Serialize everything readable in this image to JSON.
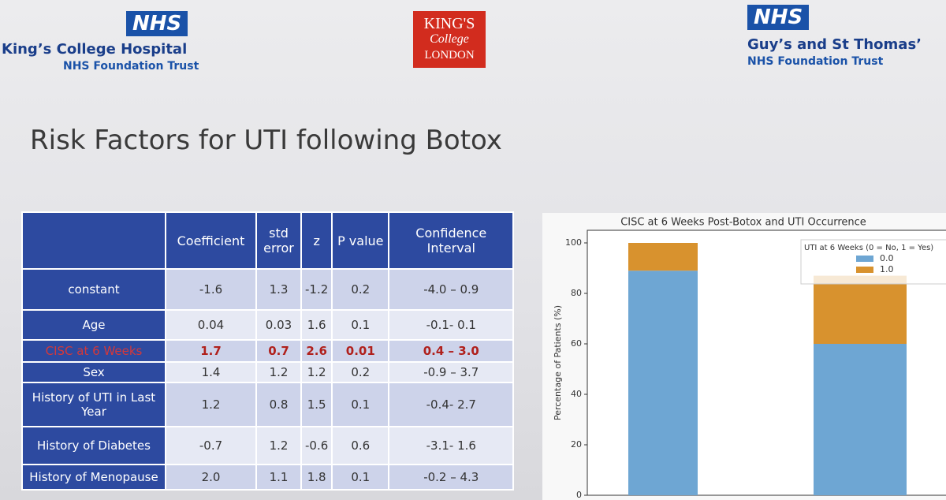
{
  "header": {
    "left_badge": "NHS",
    "left_name": "King’s College Hospital",
    "left_trust": "NHS Foundation Trust",
    "center_logo": [
      "KING'S",
      "College",
      "LONDON"
    ],
    "right_badge": "NHS",
    "right_name": "Guy’s and St Thomas’",
    "right_trust": "NHS Foundation Trust"
  },
  "slide_title": "Risk Factors for UTI following Botox",
  "table": {
    "columns": [
      "",
      "Coefficient",
      "std error",
      "z",
      "P value",
      "Confidence Interval"
    ],
    "highlight_row": 2,
    "rows": [
      [
        "constant",
        "-1.6",
        "1.3",
        "-1.2",
        "0.2",
        "-4.0 – 0.9"
      ],
      [
        "Age",
        "0.04",
        "0.03",
        "1.6",
        "0.1",
        "-0.1- 0.1"
      ],
      [
        "CISC at 6 Weeks",
        "1.7",
        "0.7",
        "2.6",
        "0.01",
        "0.4 – 3.0"
      ],
      [
        "Sex",
        "1.4",
        "1.2",
        "1.2",
        "0.2",
        "-0.9 – 3.7"
      ],
      [
        "History of UTI in Last Year",
        "1.2",
        "0.8",
        "1.5",
        "0.1",
        "-0.4- 2.7"
      ],
      [
        "History of Diabetes",
        "-0.7",
        "1.2",
        "-0.6",
        "0.6",
        "-3.1- 1.6"
      ],
      [
        "History of Menopause",
        "2.0",
        "1.1",
        "1.8",
        "0.1",
        "-0.2 – 4.3"
      ]
    ]
  },
  "chart_data": {
    "type": "stacked_bar",
    "title": "CISC at 6 Weeks Post-Botox and UTI Occurrence",
    "ylabel": "Percentage of Patients (%)",
    "categories": [
      null,
      null
    ],
    "series": [
      {
        "name": "0.0",
        "color": "#6ea6d3",
        "values": [
          89,
          60
        ]
      },
      {
        "name": "1.0",
        "color": "#d8922e",
        "values": [
          11,
          27
        ]
      }
    ],
    "legend_title": "UTI at 6 Weeks (0 = No, 1 = Yes)",
    "legend_loc": "upper right",
    "ylim": [
      0,
      105
    ],
    "yticks": [
      0,
      20,
      40,
      60,
      80,
      100
    ]
  }
}
